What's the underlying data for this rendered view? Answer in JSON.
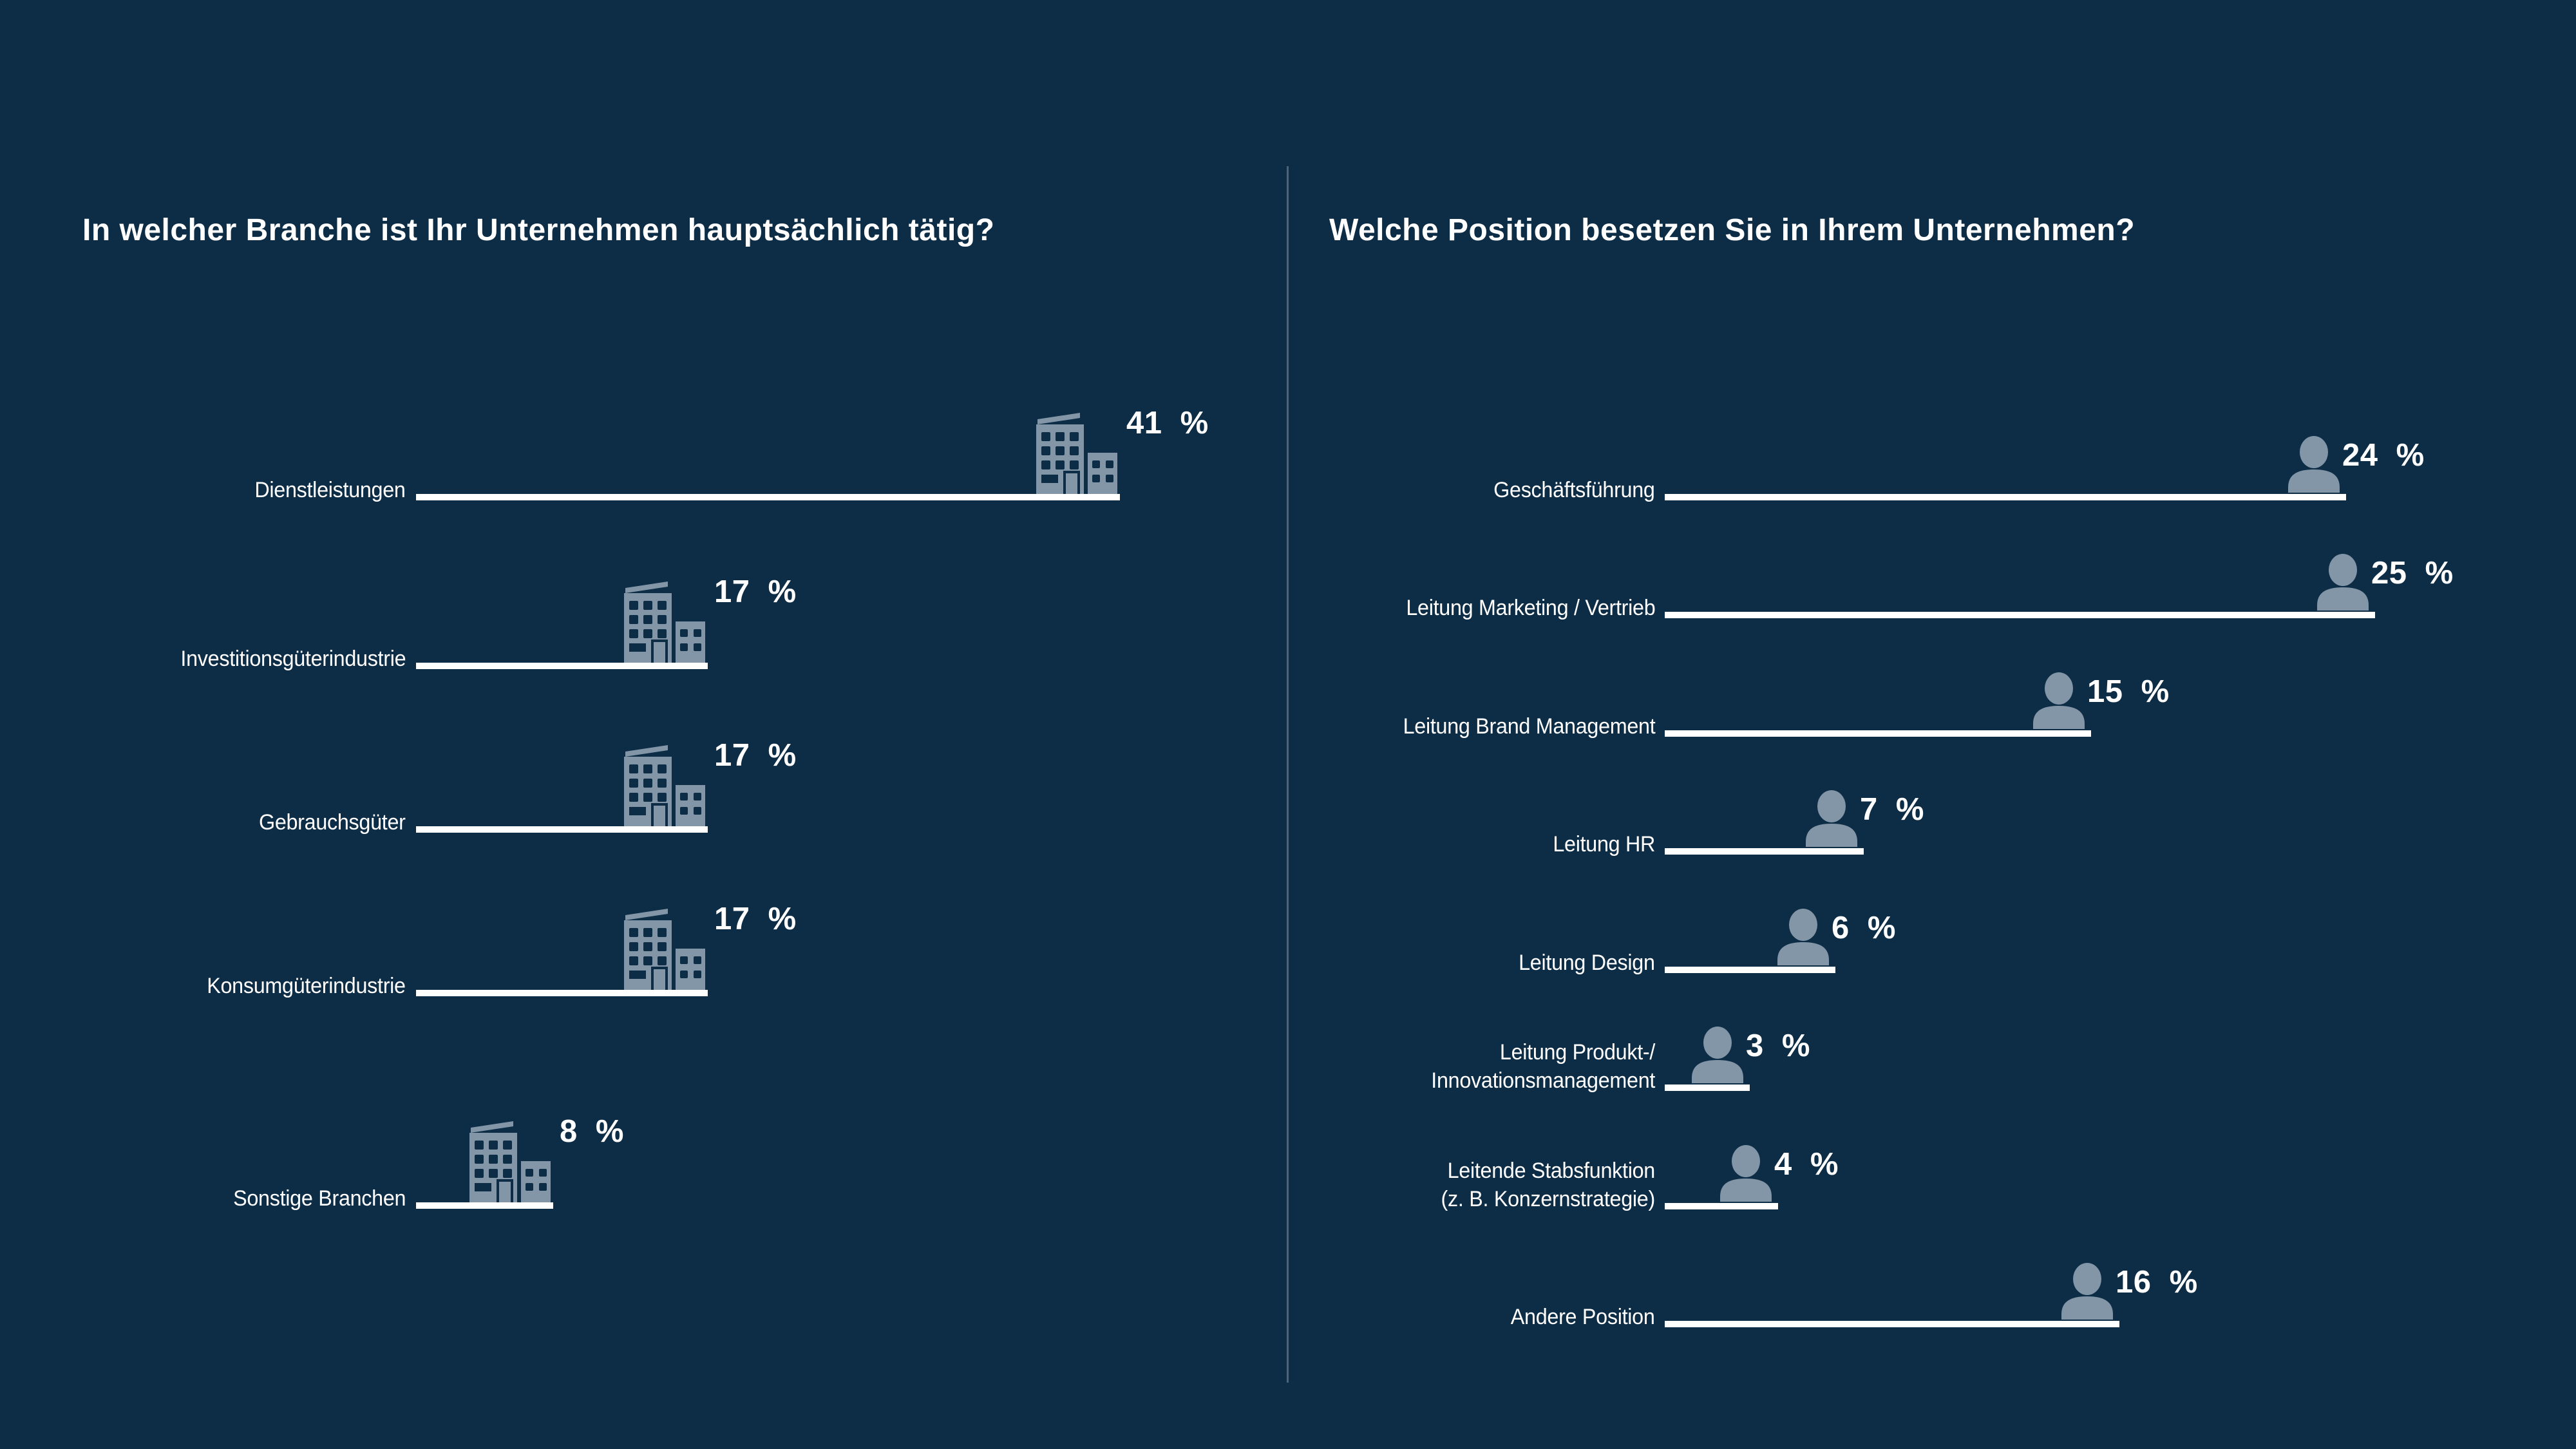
{
  "colors": {
    "background": "#0d2c45",
    "bar": "#ffffff",
    "icon": "#8396a8",
    "divider": "#4c6479",
    "text": "#ffffff"
  },
  "chart_data": [
    {
      "type": "bar",
      "orientation": "horizontal",
      "title": "In welcher Branche ist Ihr Unternehmen hauptsächlich tätig?",
      "unit": "%",
      "icon": "building",
      "legend": "none",
      "grid": false,
      "categories": [
        "Dienstleistungen",
        "Investitionsgüterindustrie",
        "Gebrauchsgüter",
        "Konsumgüterindustrie",
        "Sonstige Branchen"
      ],
      "values": [
        41,
        17,
        17,
        17,
        8
      ],
      "value_labels": [
        "41 %",
        "17 %",
        "17 %",
        "17 %",
        "8 %"
      ]
    },
    {
      "type": "bar",
      "orientation": "horizontal",
      "title": "Welche Position besetzen Sie in Ihrem Unternehmen?",
      "unit": "%",
      "icon": "person",
      "legend": "none",
      "grid": false,
      "categories": [
        "Geschäftsführung",
        "Leitung Marketing / Vertrieb",
        "Leitung Brand Management",
        "Leitung HR",
        "Leitung Design",
        [
          "Leitung Produkt-/",
          "Innovationsmanagement"
        ],
        [
          "Leitende Stabsfunktion",
          "(z. B. Konzernstrategie)"
        ],
        "Andere Position"
      ],
      "values": [
        24,
        25,
        15,
        7,
        6,
        3,
        4,
        16
      ],
      "value_labels": [
        "24 %",
        "25 %",
        "15 %",
        "7 %",
        "6 %",
        "3 %",
        "4 %",
        "16 %"
      ]
    }
  ]
}
